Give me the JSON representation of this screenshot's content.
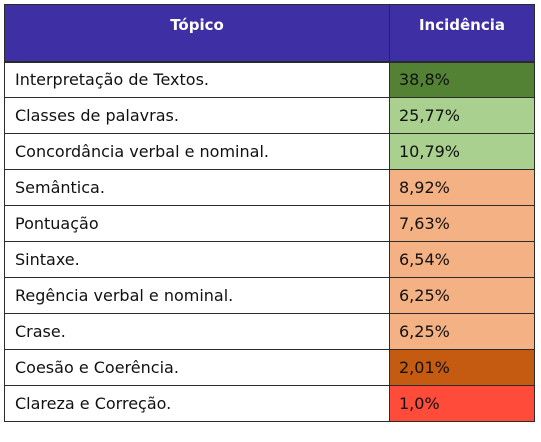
{
  "table": {
    "headers": [
      "Tópico",
      "Incidência"
    ],
    "rows": [
      {
        "topic": "Interpretação de Textos.",
        "value": "38,8%",
        "color": "#548235"
      },
      {
        "topic": "Classes de palavras.",
        "value": "25,77%",
        "color": "#a9d08e"
      },
      {
        "topic": "Concordância verbal e nominal.",
        "value": "10,79%",
        "color": "#a9d08e"
      },
      {
        "topic": "Semântica.",
        "value": "8,92%",
        "color": "#f4b183"
      },
      {
        "topic": "Pontuação",
        "value": "7,63%",
        "color": "#f4b183"
      },
      {
        "topic": "Sintaxe.",
        "value": "6,54%",
        "color": "#f4b183"
      },
      {
        "topic": "Regência verbal e nominal.",
        "value": "6,25%",
        "color": "#f4b183"
      },
      {
        "topic": "Crase.",
        "value": "6,25%",
        "color": "#f4b183"
      },
      {
        "topic": "Coesão e Coerência.",
        "value": "2,01%",
        "color": "#c55a11"
      },
      {
        "topic": "Clareza e Correção.",
        "value": "1,0%",
        "color": "#ff4b3a"
      }
    ]
  },
  "colors": {
    "header_bg": "#3f2fa5",
    "header_text": "#ffffff"
  }
}
